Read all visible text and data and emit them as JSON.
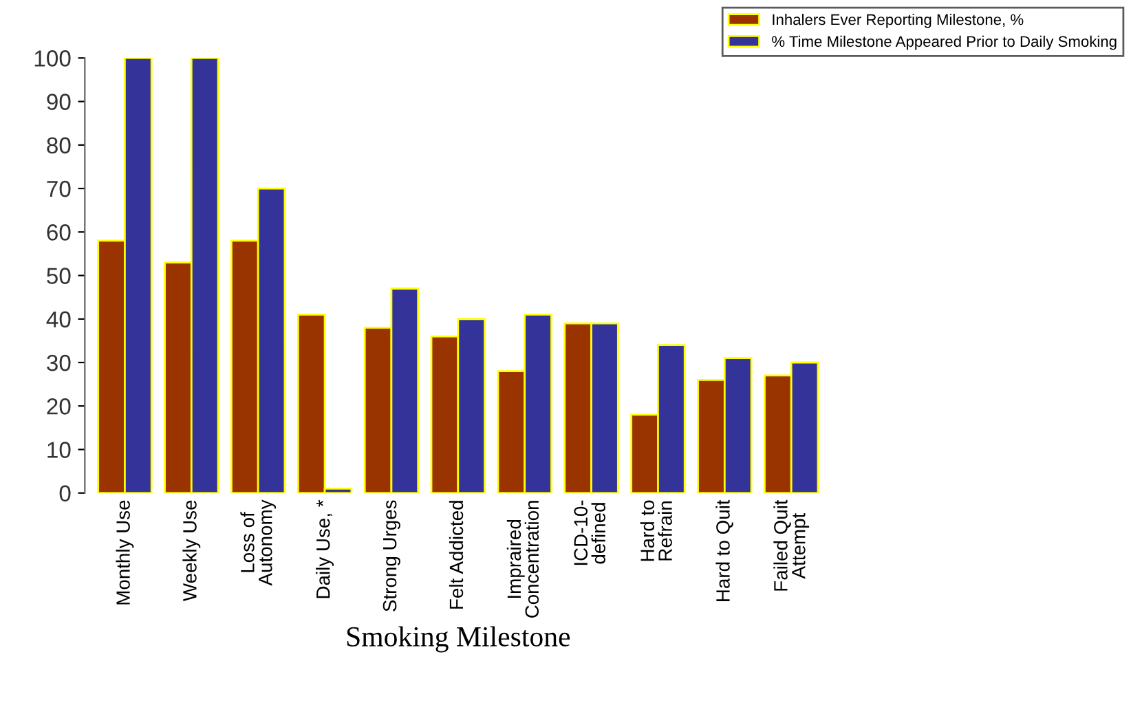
{
  "chart_data": {
    "type": "bar",
    "xlabel": "Smoking Milestone",
    "categories": [
      "Monthly Use",
      "Weekly Use",
      "Loss of\nAutonomy",
      "Daily Use, *",
      "Strong Urges",
      "Felt Addicted",
      "Impraired\nConcentration",
      "ICD-10-\ndefined",
      "Hard to\nRefrain",
      "Hard to Quit",
      "Failed Quit\nAttempt"
    ],
    "series": [
      {
        "name": "Inhalers Ever Reporting Milestone, %",
        "color": "#993300",
        "values": [
          58,
          53,
          58,
          41,
          38,
          36,
          28,
          39,
          18,
          26,
          27
        ]
      },
      {
        "name": "% Time Milestone Appeared Prior to Daily Smoking",
        "color": "#333399",
        "values": [
          100,
          100,
          70,
          1,
          47,
          40,
          41,
          39,
          34,
          31,
          30
        ]
      }
    ],
    "ylim": [
      0,
      100
    ],
    "yticks": [
      0,
      10,
      20,
      30,
      40,
      50,
      60,
      70,
      80,
      90,
      100
    ],
    "legend": "top right",
    "grid": false
  }
}
